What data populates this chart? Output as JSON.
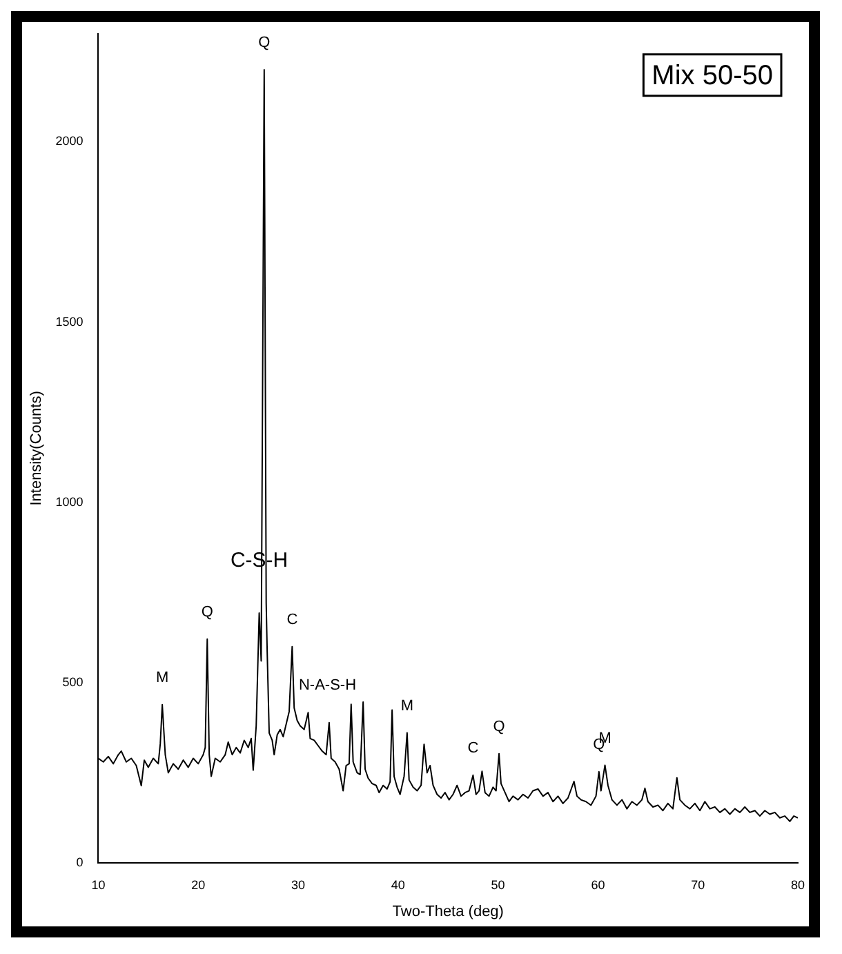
{
  "chart_data": {
    "type": "line",
    "xlabel": "Two-Theta (deg)",
    "ylabel": "Intensity(Counts)",
    "annotations": [
      "Mix 50-50",
      {
        "text": "Q",
        "x": 26.6,
        "y": 2200
      },
      {
        "text": "M",
        "x": 16.4,
        "y": 439
      },
      {
        "text": "Q",
        "x": 20.9,
        "y": 621
      },
      {
        "text": "C-S-H",
        "x": 26.1,
        "y": 693
      },
      {
        "text": "C",
        "x": 29.4,
        "y": 600
      },
      {
        "text": "N-A-S-H",
        "x": 31,
        "y": 417
      },
      {
        "text": "M",
        "x": 40.9,
        "y": 361
      },
      {
        "text": "C",
        "x": 47.5,
        "y": 243
      },
      {
        "text": "Q",
        "x": 50.1,
        "y": 303
      },
      {
        "text": "Q",
        "x": 60.1,
        "y": 253
      },
      {
        "text": "M",
        "x": 60.7,
        "y": 271
      }
    ],
    "x": [
      10,
      10.5,
      11,
      11.5,
      12,
      12.3,
      12.8,
      13.3,
      13.8,
      14.3,
      14.6,
      15,
      15.5,
      16,
      16.2,
      16.4,
      16.7,
      17,
      17.5,
      18,
      18.5,
      19,
      19.5,
      20,
      20.5,
      20.7,
      20.9,
      21.1,
      21.3,
      21.7,
      22.2,
      22.7,
      23,
      23.4,
      23.8,
      24.2,
      24.6,
      25,
      25.3,
      25.5,
      25.8,
      26.1,
      26.3,
      26.6,
      26.8,
      26.9,
      27.1,
      27.4,
      27.6,
      27.9,
      28.2,
      28.5,
      28.8,
      29.1,
      29.4,
      29.6,
      29.9,
      30.2,
      30.6,
      31,
      31.2,
      31.6,
      32,
      32.4,
      32.8,
      33.1,
      33.3,
      33.7,
      34.1,
      34.5,
      34.8,
      35.1,
      35.3,
      35.5,
      35.9,
      36.2,
      36.5,
      36.7,
      37,
      37.4,
      37.8,
      38.1,
      38.5,
      38.9,
      39.2,
      39.4,
      39.6,
      39.9,
      40.2,
      40.6,
      40.9,
      41.1,
      41.5,
      41.9,
      42.3,
      42.6,
      42.9,
      43.2,
      43.5,
      43.9,
      44.3,
      44.7,
      45.1,
      45.5,
      45.9,
      46.3,
      46.7,
      47.1,
      47.5,
      47.8,
      48.1,
      48.4,
      48.7,
      49.1,
      49.5,
      49.8,
      50.1,
      50.3,
      50.7,
      51.1,
      51.5,
      52,
      52.5,
      53,
      53.5,
      54,
      54.5,
      55,
      55.5,
      56,
      56.5,
      57,
      57.6,
      57.9,
      58.3,
      58.8,
      59.3,
      59.8,
      60.1,
      60.3,
      60.7,
      61,
      61.4,
      61.9,
      62.4,
      62.9,
      63.4,
      63.9,
      64.4,
      64.7,
      65,
      65.5,
      66,
      66.5,
      67,
      67.5,
      67.9,
      68.2,
      68.7,
      69.2,
      69.7,
      70.2,
      70.7,
      71.2,
      71.7,
      72.2,
      72.7,
      73.2,
      73.7,
      74.2,
      74.7,
      75.2,
      75.7,
      76.2,
      76.7,
      77.2,
      77.7,
      78.2,
      78.7,
      79.2,
      79.6,
      80
    ],
    "series": [
      {
        "color": "#000000",
        "values": [
          290,
          280,
          295,
          275,
          300,
          310,
          280,
          290,
          270,
          214,
          285,
          265,
          290,
          275,
          330,
          439,
          300,
          250,
          275,
          260,
          285,
          265,
          290,
          275,
          300,
          320,
          621,
          300,
          240,
          290,
          280,
          300,
          335,
          300,
          320,
          305,
          340,
          320,
          345,
          257,
          380,
          693,
          560,
          2200,
          720,
          586,
          360,
          340,
          300,
          355,
          370,
          350,
          385,
          420,
          600,
          430,
          395,
          380,
          370,
          417,
          345,
          340,
          325,
          310,
          300,
          389,
          290,
          280,
          260,
          200,
          270,
          275,
          440,
          280,
          250,
          245,
          446,
          260,
          235,
          220,
          215,
          195,
          215,
          205,
          225,
          424,
          240,
          210,
          190,
          240,
          361,
          230,
          210,
          200,
          215,
          329,
          250,
          270,
          215,
          190,
          180,
          195,
          175,
          190,
          215,
          185,
          195,
          200,
          243,
          190,
          200,
          254,
          195,
          185,
          210,
          200,
          303,
          220,
          195,
          170,
          185,
          175,
          190,
          180,
          200,
          205,
          185,
          195,
          170,
          185,
          165,
          180,
          226,
          185,
          175,
          170,
          160,
          185,
          253,
          200,
          271,
          215,
          175,
          160,
          175,
          150,
          170,
          160,
          175,
          207,
          170,
          155,
          160,
          145,
          165,
          150,
          236,
          175,
          160,
          150,
          165,
          145,
          170,
          150,
          155,
          140,
          150,
          135,
          150,
          140,
          155,
          140,
          145,
          130,
          145,
          135,
          140,
          125,
          130,
          115,
          130,
          125
        ]
      }
    ],
    "xlim": [
      10,
      80
    ],
    "ylim": [
      0,
      2300
    ],
    "xticks": [
      10,
      20,
      30,
      40,
      50,
      60,
      70,
      80
    ],
    "yticks": [
      0,
      500,
      1000,
      1500,
      2000
    ],
    "marker": "none",
    "line_style": "solid"
  }
}
